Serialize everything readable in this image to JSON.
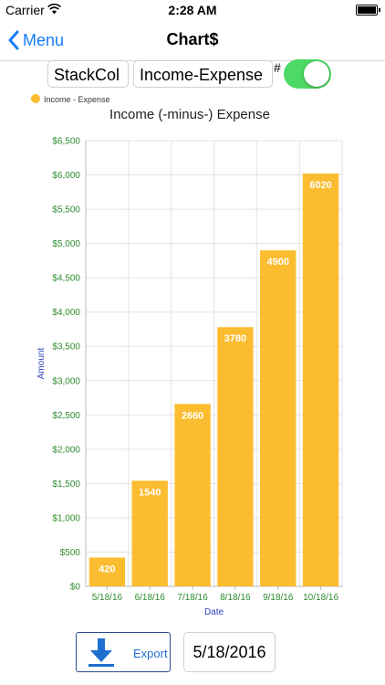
{
  "status_bar": {
    "carrier": "Carrier",
    "time": "2:28 AM"
  },
  "nav": {
    "back_label": "Menu",
    "title": "Chart$"
  },
  "controls": {
    "chart_type": "StackCol",
    "series": "Income-Expense",
    "hash_label": "#",
    "toggle_on": true
  },
  "chart_data": {
    "type": "bar",
    "title": "Income (-minus-) Expense",
    "legend": [
      {
        "name": "Income - Expense",
        "color": "#fbbd2f"
      }
    ],
    "legend_position": "top-left",
    "categories": [
      "5/18/16",
      "6/18/16",
      "7/18/16",
      "8/18/16",
      "9/18/16",
      "10/18/16"
    ],
    "series": [
      {
        "name": "Income - Expense",
        "values": [
          420,
          1540,
          2660,
          3780,
          4900,
          6020
        ]
      }
    ],
    "data_labels": [
      "420",
      "1540",
      "2660",
      "3780",
      "4900",
      "6020"
    ],
    "xlabel": "Date",
    "ylabel": "Amount",
    "ylim": [
      0,
      6500
    ],
    "yticks": [
      0,
      500,
      1000,
      1500,
      2000,
      2500,
      3000,
      3500,
      4000,
      4500,
      5000,
      5500,
      6000,
      6500
    ],
    "ytick_labels": [
      "$0",
      "$500",
      "$1,000",
      "$1,500",
      "$2,000",
      "$2,500",
      "$3,000",
      "$3,500",
      "$4,000",
      "$4,500",
      "$5,000",
      "$5,500",
      "$6,000",
      "$6,500"
    ],
    "grid": true,
    "colors": {
      "bar": "#fbbd2f",
      "tick_text": "#2e8b2e",
      "axis_title": "#2a3fbf",
      "grid": "#e3e3e3"
    }
  },
  "footer": {
    "export_label": "Export",
    "date_value": "5/18/2016"
  },
  "icons": {
    "back": "chevron-left-icon",
    "export": "download-arrow-icon",
    "wifi": "wifi-icon",
    "battery": "battery-icon"
  }
}
